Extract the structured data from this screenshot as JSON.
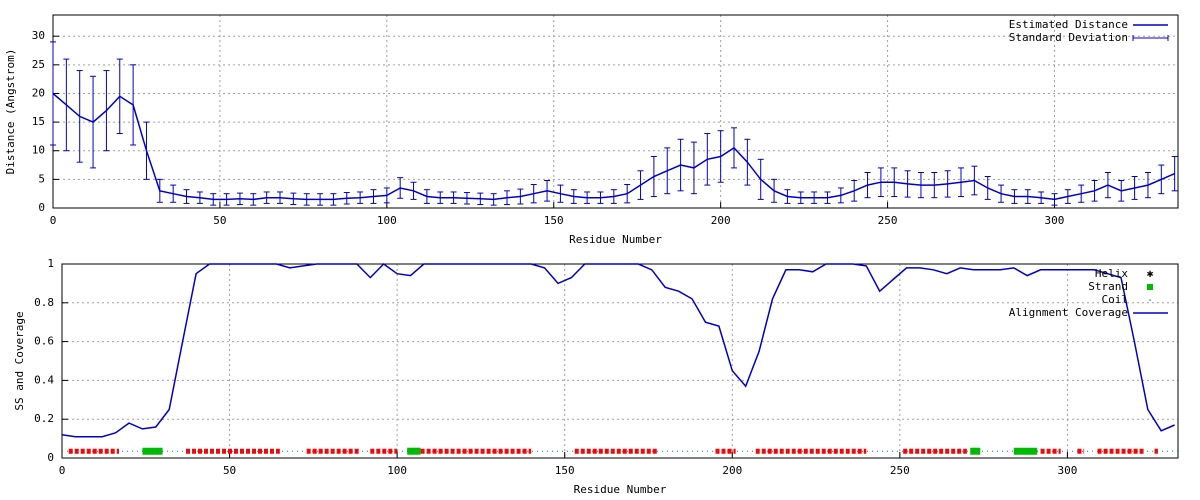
{
  "chart_data": [
    {
      "type": "line",
      "xlabel": "Residue Number",
      "ylabel": "Distance (Angstrom)",
      "xlim": [
        0,
        337
      ],
      "ylim": [
        0,
        33.7
      ],
      "xticks": [
        0,
        50,
        100,
        150,
        200,
        250,
        300
      ],
      "yticks": [
        0,
        5,
        10,
        15,
        20,
        25,
        30
      ],
      "grid": true,
      "legend": "top right",
      "x": [
        0,
        4,
        8,
        12,
        16,
        20,
        24,
        28,
        32,
        36,
        40,
        44,
        48,
        52,
        56,
        60,
        64,
        68,
        72,
        76,
        80,
        84,
        88,
        92,
        96,
        100,
        104,
        108,
        112,
        116,
        120,
        124,
        128,
        132,
        136,
        140,
        144,
        148,
        152,
        156,
        160,
        164,
        168,
        172,
        176,
        180,
        184,
        188,
        192,
        196,
        200,
        204,
        208,
        212,
        216,
        220,
        224,
        228,
        232,
        236,
        240,
        244,
        248,
        252,
        256,
        260,
        264,
        268,
        272,
        276,
        280,
        284,
        288,
        292,
        296,
        300,
        304,
        308,
        312,
        316,
        320,
        324,
        328,
        332,
        336
      ],
      "series": [
        {
          "name": "Estimated Distance",
          "color": "#0000cc",
          "marker": "line",
          "values": [
            20,
            18,
            16,
            15,
            17,
            19.5,
            18,
            10,
            3,
            2.5,
            2,
            1.8,
            1.5,
            1.5,
            1.6,
            1.5,
            1.8,
            1.8,
            1.6,
            1.5,
            1.5,
            1.5,
            1.7,
            1.8,
            2,
            2.2,
            3.5,
            3,
            2,
            1.8,
            1.8,
            1.7,
            1.6,
            1.5,
            1.8,
            2,
            2.5,
            3,
            2.5,
            2,
            1.8,
            1.8,
            2,
            2.5,
            4,
            5.5,
            6.5,
            7.5,
            7,
            8.5,
            9,
            10.5,
            8,
            5,
            3,
            2,
            1.8,
            1.8,
            1.8,
            2.2,
            3,
            4,
            4.5,
            4.5,
            4.2,
            4,
            4,
            4.2,
            4.5,
            4.8,
            3.5,
            2.5,
            2,
            2,
            1.8,
            1.5,
            2,
            2.5,
            3,
            4,
            3,
            3.5,
            4,
            5,
            6
          ]
        },
        {
          "name": "Standard Deviation",
          "color": "#0000cc",
          "marker": "errorbar",
          "errors": [
            9,
            8,
            8,
            8,
            7,
            6.5,
            7,
            5,
            2,
            1.5,
            1.2,
            1,
            1,
            1,
            1,
            1,
            1,
            1,
            1,
            1,
            1,
            1,
            1,
            1,
            1.2,
            1.3,
            1.8,
            1.5,
            1.2,
            1,
            1,
            1,
            1,
            1,
            1.2,
            1.3,
            1.6,
            1.8,
            1.5,
            1.2,
            1,
            1,
            1.2,
            1.6,
            2.5,
            3.5,
            4,
            4.5,
            4.5,
            4.5,
            4.5,
            3.5,
            4,
            3.5,
            2,
            1.2,
            1,
            1,
            1,
            1.3,
            1.8,
            2.2,
            2.5,
            2.5,
            2.3,
            2.2,
            2.2,
            2.3,
            2.5,
            2.5,
            2,
            1.5,
            1.2,
            1.2,
            1,
            1,
            1.2,
            1.5,
            1.8,
            2.2,
            1.8,
            2,
            2.2,
            2.5,
            3
          ]
        }
      ]
    },
    {
      "type": "line",
      "xlabel": "Residue Number",
      "ylabel": "SS and Coverage",
      "xlim": [
        0,
        333
      ],
      "ylim": [
        0,
        1
      ],
      "xticks": [
        0,
        50,
        100,
        150,
        200,
        250,
        300
      ],
      "yticks": [
        0,
        0.2,
        0.4,
        0.6,
        0.8,
        1
      ],
      "grid": true,
      "legend": "top right",
      "series": [
        {
          "name": "Helix",
          "color": "#ff0000",
          "marker": "star",
          "segments": [
            [
              2,
              17
            ],
            [
              37,
              65
            ],
            [
              73,
              89
            ],
            [
              92,
              100
            ],
            [
              107,
              140
            ],
            [
              153,
              178
            ],
            [
              195,
              201
            ],
            [
              207,
              240
            ],
            [
              251,
              270
            ],
            [
              292,
              298
            ],
            [
              303,
              305
            ],
            [
              309,
              323
            ],
            [
              326,
              327
            ]
          ],
          "values": [
            0.035,
            0.035,
            0.035,
            0.035,
            0.035,
            0.035,
            0.035,
            0.035,
            0.035,
            0.035,
            0.035,
            0.035,
            0.035
          ]
        },
        {
          "name": "Strand",
          "color": "#00bb00",
          "marker": "square",
          "segments": [
            [
              24,
              30
            ],
            [
              103,
              107
            ],
            [
              271,
              274
            ],
            [
              284,
              291
            ]
          ],
          "values": [
            0.035,
            0.035,
            0.035,
            0.035
          ]
        },
        {
          "name": "Coil",
          "color": "#0080a0",
          "marker": "dot",
          "segments": [
            [
              0,
              333
            ]
          ],
          "values": [
            0.035
          ]
        },
        {
          "name": "Alignment Coverage",
          "color": "#0000cc",
          "marker": "line",
          "x": [
            0,
            4,
            8,
            12,
            16,
            20,
            24,
            28,
            32,
            36,
            40,
            44,
            48,
            52,
            56,
            60,
            64,
            68,
            72,
            76,
            80,
            84,
            88,
            92,
            96,
            100,
            104,
            108,
            112,
            116,
            120,
            124,
            128,
            132,
            136,
            140,
            144,
            148,
            152,
            156,
            160,
            164,
            168,
            172,
            176,
            180,
            184,
            188,
            192,
            196,
            200,
            204,
            208,
            212,
            216,
            220,
            224,
            228,
            232,
            236,
            240,
            244,
            248,
            252,
            256,
            260,
            264,
            268,
            272,
            276,
            280,
            284,
            288,
            292,
            296,
            300,
            304,
            308,
            312,
            316,
            320,
            324,
            328,
            332
          ],
          "values": [
            0.12,
            0.11,
            0.11,
            0.11,
            0.13,
            0.18,
            0.15,
            0.16,
            0.25,
            0.6,
            0.95,
            1,
            1,
            1,
            1,
            1,
            1,
            0.98,
            0.99,
            1,
            1,
            1,
            1,
            0.93,
            1,
            0.95,
            0.94,
            1,
            1,
            1,
            1,
            1,
            1,
            1,
            1,
            1,
            0.98,
            0.9,
            0.93,
            1,
            1,
            1,
            1,
            1,
            0.97,
            0.88,
            0.86,
            0.82,
            0.7,
            0.68,
            0.45,
            0.37,
            0.55,
            0.82,
            0.97,
            0.97,
            0.96,
            1,
            1,
            1,
            0.99,
            0.86,
            0.92,
            0.98,
            0.98,
            0.97,
            0.95,
            0.98,
            0.97,
            0.97,
            0.97,
            0.98,
            0.94,
            0.97,
            0.97,
            0.97,
            0.97,
            0.97,
            0.95,
            0.93,
            0.6,
            0.25,
            0.14,
            0.17
          ]
        }
      ]
    }
  ]
}
